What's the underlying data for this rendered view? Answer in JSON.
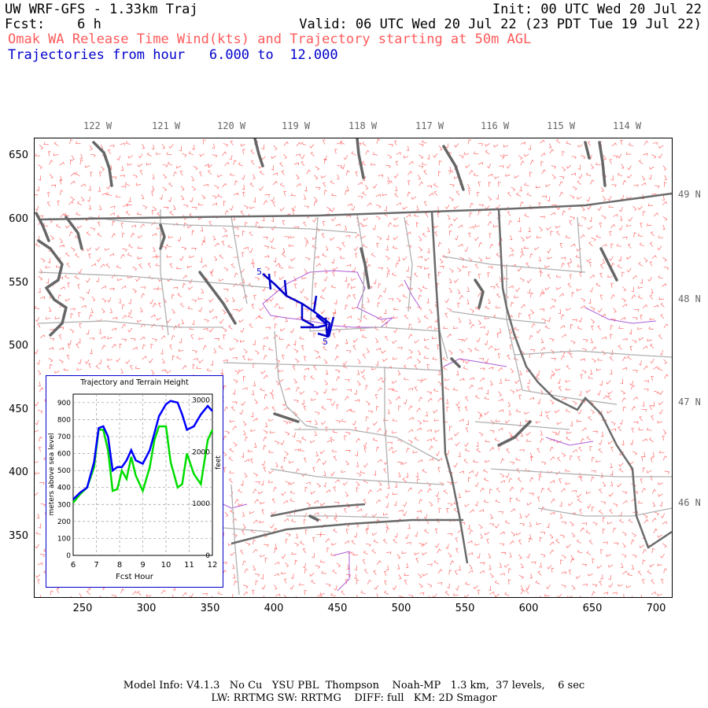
{
  "header": {
    "title": "UW WRF-GFS - 1.33km Traj",
    "init": "Init: 00 UTC Wed 20 Jul 22",
    "fcst": "Fcst:    6 h",
    "valid": "Valid: 06 UTC Wed 20 Jul 22 (23 PDT Tue 19 Jul 22)",
    "subtitle": "Omak WA Release Time Wind(kts) and Trajectory starting at 50m AGL",
    "traj_hours": "Trajectories from hour   6.000 to  12.000"
  },
  "map": {
    "lon_labels": [
      "122 W",
      "121 W",
      "120 W",
      "119 W",
      "118 W",
      "117 W",
      "116 W",
      "115 W",
      "114 W"
    ],
    "lat_labels": [
      "49 N",
      "48 N",
      "47 N",
      "46 N"
    ],
    "y_ticks": [
      "650",
      "600",
      "550",
      "500",
      "450",
      "400",
      "350"
    ],
    "x_ticks": [
      "250",
      "300",
      "350",
      "400",
      "450",
      "500",
      "550",
      "600",
      "650",
      "700"
    ],
    "trajectory_labels": [
      "5",
      "5"
    ],
    "colors": {
      "wind_barbs": "#ff6666",
      "state_border": "#777777",
      "county": "#aaaaaa",
      "coast": "#666666",
      "trajectory": "#0000cc",
      "terrain_contour": "#9933cc"
    }
  },
  "inset": {
    "title": "Trajectory and Terrain Height",
    "ylabel_left": "meters above sea level",
    "ylabel_right": "feet",
    "xlabel": "Fcst Hour",
    "x_ticks": [
      "6",
      "7",
      "8",
      "9",
      "10",
      "11",
      "12"
    ],
    "y_ticks_left": [
      "0",
      "100",
      "200",
      "300",
      "400",
      "500",
      "600",
      "700",
      "800",
      "900"
    ],
    "y_ticks_right": [
      "0",
      "1000",
      "2000",
      "3000"
    ]
  },
  "chart_data": {
    "type": "line",
    "title": "Trajectory and Terrain Height",
    "xlabel": "Fcst Hour",
    "ylabel": "meters above sea level",
    "xlim": [
      6,
      12
    ],
    "ylim": [
      0,
      950
    ],
    "series": [
      {
        "name": "trajectory",
        "color": "#0000ff",
        "x": [
          6.0,
          6.3,
          6.6,
          6.9,
          7.1,
          7.3,
          7.5,
          7.7,
          7.9,
          8.1,
          8.3,
          8.5,
          8.7,
          9.0,
          9.3,
          9.5,
          9.7,
          10.0,
          10.2,
          10.5,
          10.7,
          10.9,
          11.2,
          11.5,
          11.8,
          12.0
        ],
        "values": [
          330,
          370,
          400,
          550,
          750,
          760,
          700,
          500,
          520,
          520,
          560,
          620,
          560,
          540,
          620,
          720,
          820,
          890,
          910,
          900,
          830,
          740,
          760,
          830,
          880,
          850
        ]
      },
      {
        "name": "terrain",
        "color": "#00dd00",
        "x": [
          6.0,
          6.3,
          6.6,
          6.9,
          7.1,
          7.3,
          7.5,
          7.7,
          7.9,
          8.1,
          8.3,
          8.5,
          8.7,
          9.0,
          9.3,
          9.5,
          9.7,
          10.0,
          10.2,
          10.5,
          10.7,
          10.9,
          11.2,
          11.5,
          11.8,
          12.0
        ],
        "values": [
          310,
          360,
          400,
          520,
          740,
          740,
          620,
          380,
          390,
          500,
          450,
          580,
          470,
          380,
          520,
          680,
          760,
          760,
          550,
          400,
          420,
          600,
          480,
          420,
          680,
          740
        ]
      }
    ]
  },
  "footer": {
    "line1": "Model Info: V4.1.3   No Cu   YSU PBL  Thompson    Noah-MP   1.3 km,  37 levels,    6 sec",
    "line2": "LW: RRTMG SW: RRTMG    DIFF: full   KM: 2D Smagor"
  }
}
